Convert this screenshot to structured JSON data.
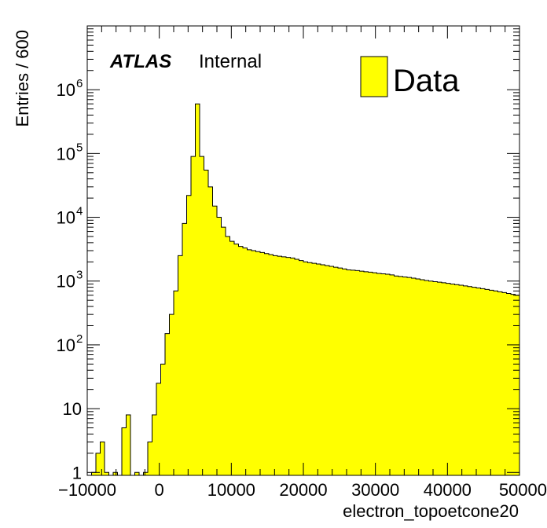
{
  "chart_data": {
    "type": "bar",
    "title": "",
    "xlabel": "electron_topoetcone20",
    "ylabel": "Entries / 600",
    "xlim": [
      -10000,
      50000
    ],
    "ylim": [
      0.9,
      10000000
    ],
    "log_y": true,
    "x_tick_labels": [
      "−10000",
      "0",
      "10000",
      "20000",
      "30000",
      "40000",
      "50000"
    ],
    "y_tick_labels": [
      {
        "value": 1,
        "base": "1",
        "exp": ""
      },
      {
        "value": 10,
        "base": "10",
        "exp": ""
      },
      {
        "value": 100,
        "base": "10",
        "exp": "2"
      },
      {
        "value": 1000,
        "base": "10",
        "exp": "3"
      },
      {
        "value": 10000,
        "base": "10",
        "exp": "4"
      },
      {
        "value": 100000,
        "base": "10",
        "exp": "5"
      },
      {
        "value": 1000000,
        "base": "10",
        "exp": "6"
      }
    ],
    "annotation": {
      "experiment": "ATLAS",
      "status": "Internal"
    },
    "series": [
      {
        "name": "Data",
        "color": "#ffff00",
        "bin_width": 600,
        "x_start": -10000,
        "values": [
          0,
          1,
          2,
          3,
          1,
          0,
          1,
          0,
          5,
          8,
          0,
          1,
          0,
          1,
          3,
          8,
          25,
          50,
          150,
          300,
          700,
          2500,
          8000,
          22000,
          90000,
          600000,
          90000,
          55000,
          30000,
          15000,
          10000,
          7000,
          5000,
          4200,
          3800,
          3500,
          3300,
          3100,
          3000,
          2900,
          2800,
          2700,
          2600,
          2500,
          2450,
          2400,
          2350,
          2300,
          2200,
          2100,
          2000,
          1950,
          1900,
          1850,
          1800,
          1750,
          1700,
          1650,
          1600,
          1550,
          1500,
          1480,
          1460,
          1430,
          1400,
          1380,
          1350,
          1320,
          1300,
          1280,
          1250,
          1200,
          1180,
          1160,
          1140,
          1110,
          1080,
          1050,
          1020,
          1000,
          980,
          960,
          940,
          920,
          900,
          880,
          860,
          840,
          820,
          800,
          780,
          760,
          740,
          720,
          700,
          680,
          660,
          640,
          620,
          600
        ]
      }
    ]
  }
}
